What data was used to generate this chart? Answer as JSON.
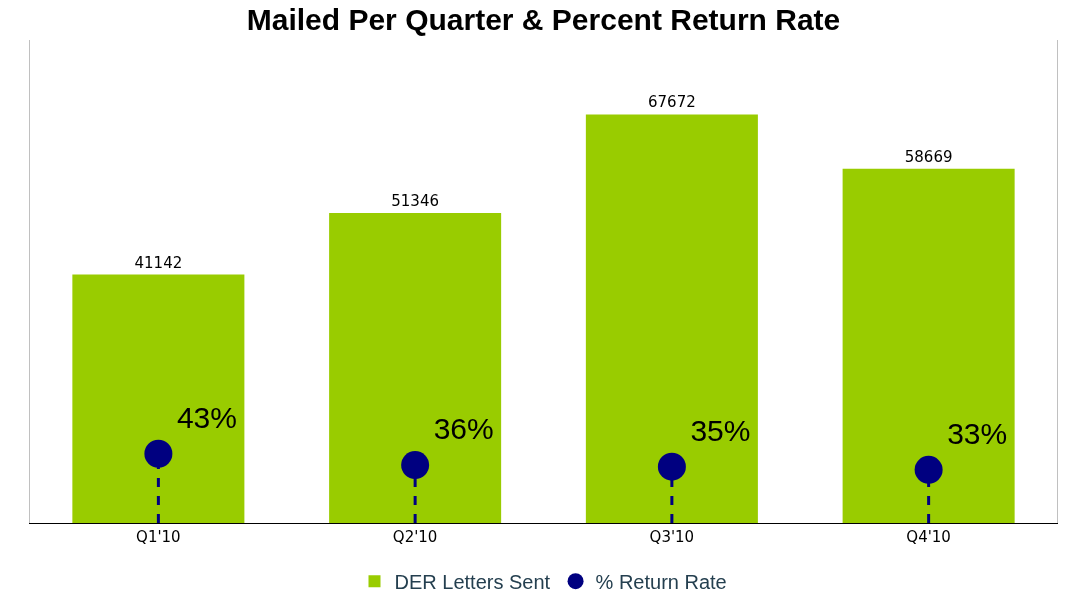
{
  "chart_data": {
    "type": "bar",
    "title": "Mailed Per Quarter & Percent Return Rate",
    "categories": [
      "Q1'10",
      "Q2'10",
      "Q3'10",
      "Q4'10"
    ],
    "series": [
      {
        "name": "DER Letters Sent",
        "color": "#99cc00",
        "values": [
          41142,
          51346,
          67672,
          58669
        ],
        "value_labels": [
          "41142",
          "51346",
          "67672",
          "58669"
        ]
      },
      {
        "name": "% Return Rate",
        "type": "lollipop",
        "axis": "y2",
        "color": "#000080",
        "line_style": "dashed",
        "marker": "circle",
        "values": [
          43,
          36,
          35,
          33
        ],
        "value_labels": [
          "43%",
          "36%",
          "35%",
          "33%"
        ]
      }
    ],
    "ylim": [
      0,
      80000
    ],
    "y2lim": [
      0,
      300
    ],
    "tick_labels": "x",
    "grid": false,
    "legend": "bottom"
  }
}
